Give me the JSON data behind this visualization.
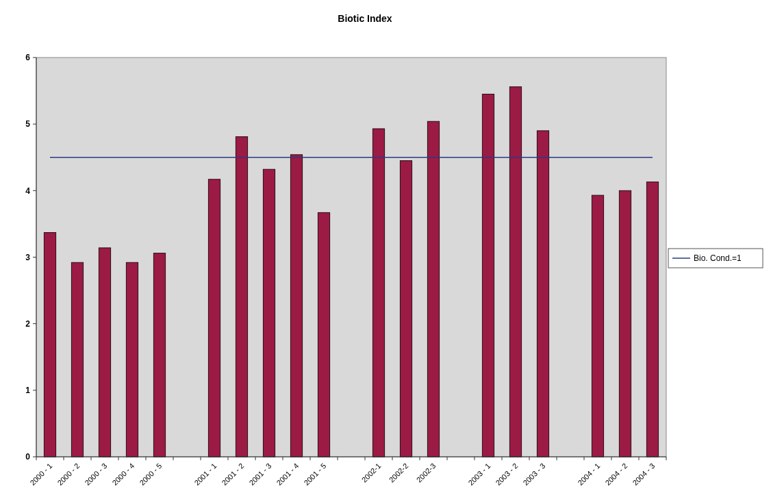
{
  "chart_data": {
    "type": "bar",
    "title": "Biotic Index",
    "categories": [
      "2000 - 1",
      "2000 - 2",
      "2000 - 3",
      "2000 - 4",
      "2000 - 5",
      null,
      "2001 - 1",
      "2001 - 2",
      "2001 - 3",
      "2001 - 4",
      "2001 - 5",
      null,
      "2002-1",
      "2002-2",
      "2002-3",
      null,
      "2003 - 1",
      "2003 - 2",
      "2003 - 3",
      null,
      "2004 - 1",
      "2004 - 2",
      "2004 - 3"
    ],
    "series": [
      {
        "color": "#9b1b45",
        "values": [
          3.37,
          2.92,
          3.14,
          2.92,
          3.06,
          null,
          4.17,
          4.81,
          4.32,
          4.54,
          3.67,
          null,
          4.93,
          4.45,
          5.04,
          null,
          5.45,
          5.56,
          4.9,
          null,
          3.93,
          4.0,
          4.13
        ]
      },
      {
        "type": "line",
        "name": "Bio. Cond.=1",
        "color": "#2b3a80",
        "values": [
          4.5,
          4.5,
          4.5,
          4.5,
          4.5,
          4.5,
          4.5,
          4.5,
          4.5,
          4.5,
          4.5,
          4.5,
          4.5,
          4.5,
          4.5,
          4.5,
          4.5,
          4.5,
          4.5,
          4.5,
          4.5,
          4.5,
          4.5
        ]
      }
    ],
    "ylim": [
      0,
      6
    ],
    "yticks": [
      0,
      1,
      2,
      3,
      4,
      5,
      6
    ],
    "legend": "right"
  }
}
